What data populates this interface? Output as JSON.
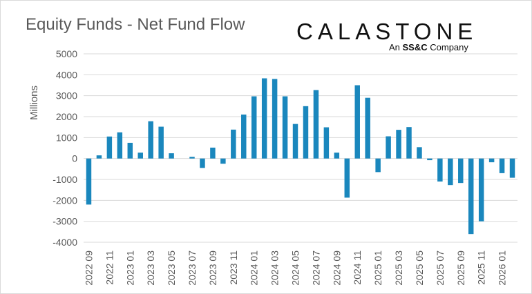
{
  "title": "Equity Funds - Net Fund Flow",
  "logo": {
    "wordmark": "CALASTONE",
    "sub_prefix": "An ",
    "sub_bold": "SS&C",
    "sub_suffix": " Company"
  },
  "colors": {
    "bar": "#1a87bd",
    "grid": "#d9d9d9",
    "text": "#595959"
  },
  "chart_data": {
    "type": "bar",
    "title": "Equity Funds - Net Fund Flow",
    "ylabel": "Millions",
    "xlabel": "",
    "ylim": [
      -4000,
      5000
    ],
    "yticks": [
      5000,
      4000,
      3000,
      2000,
      1000,
      0,
      -1000,
      -2000,
      -3000,
      -4000
    ],
    "grid": true,
    "categories": [
      "2022 09",
      "2022 10",
      "2022 11",
      "2022 12",
      "2023 01",
      "2023 02",
      "2023 03",
      "2023 04",
      "2023 05",
      "2023 06",
      "2023 07",
      "2023 08",
      "2023 09",
      "2023 10",
      "2023 11",
      "2023 12",
      "2024 01",
      "2024 02",
      "2024 03",
      "2024 04",
      "2024 05",
      "2024 06",
      "2024 07",
      "2024 08",
      "2024 09",
      "2024 10",
      "2024 11",
      "2024 12",
      "2025 01",
      "2025 02",
      "2025 03",
      "2025 04",
      "2025 05",
      "2025 06",
      "2025 07",
      "2025 08",
      "2025 09",
      "2025 10",
      "2025 11",
      "2025 12",
      "2026 01",
      "2026 02"
    ],
    "tick_labels": [
      "2022 09",
      "2022 11",
      "2023 01",
      "2023 03",
      "2023 05",
      "2023 07",
      "2023 09",
      "2023 11",
      "2024 01",
      "2024 03",
      "2024 05",
      "2024 07",
      "2024 09",
      "2024 11",
      "2025 01",
      "2025 03",
      "2025 05",
      "2025 07",
      "2025 09",
      "2025 11",
      "2026 01"
    ],
    "values": [
      -2200,
      150,
      1050,
      1250,
      750,
      280,
      1780,
      1520,
      250,
      0,
      80,
      -450,
      520,
      -250,
      1380,
      2100,
      2970,
      3830,
      3800,
      2970,
      1650,
      2500,
      3270,
      1490,
      280,
      -1870,
      3500,
      2900,
      -650,
      1060,
      1370,
      1500,
      540,
      -80,
      -1100,
      -1270,
      -1170,
      -3610,
      -3000,
      -180,
      -700,
      -920
    ]
  }
}
